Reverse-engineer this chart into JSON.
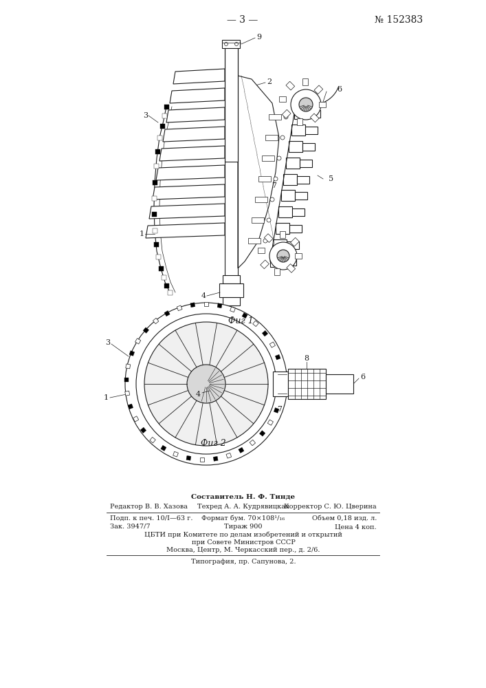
{
  "page_header_left": "— 3 —",
  "page_header_right": "№ 152383",
  "fig1_caption": "Фиг 1",
  "fig2_caption": "Фиг 2",
  "footer_line1_center": "Составитель Н. Ф. Тинде",
  "footer_line2_left": "Редактор В. В. Хазова",
  "footer_line2_center": "Техред А. А. Кудрявицкая",
  "footer_line2_right": "Корректор С. Ю. Цверина",
  "footer_line3_left": "Подп. к печ. 10/I—63 г.",
  "footer_line3_center": "Формат бум. 70×108¹/₁₆",
  "footer_line3_right": "Объем 0,18 изд. л.",
  "footer_line4_left": "Зак. 3947/7",
  "footer_line4_center": "Тираж 900",
  "footer_line4_right": "Цена 4 коп.",
  "footer_line5": "ЦБТИ при Комитете по делам изобретений и открытий",
  "footer_line6": "при Совете Министров СССР",
  "footer_line7": "Москва, Центр, М. Черкасский пер., д. 2/6.",
  "footer_separator": "Типография, пр. Сапунова, 2.",
  "bg_color": "#ffffff",
  "line_color": "#1a1a1a"
}
